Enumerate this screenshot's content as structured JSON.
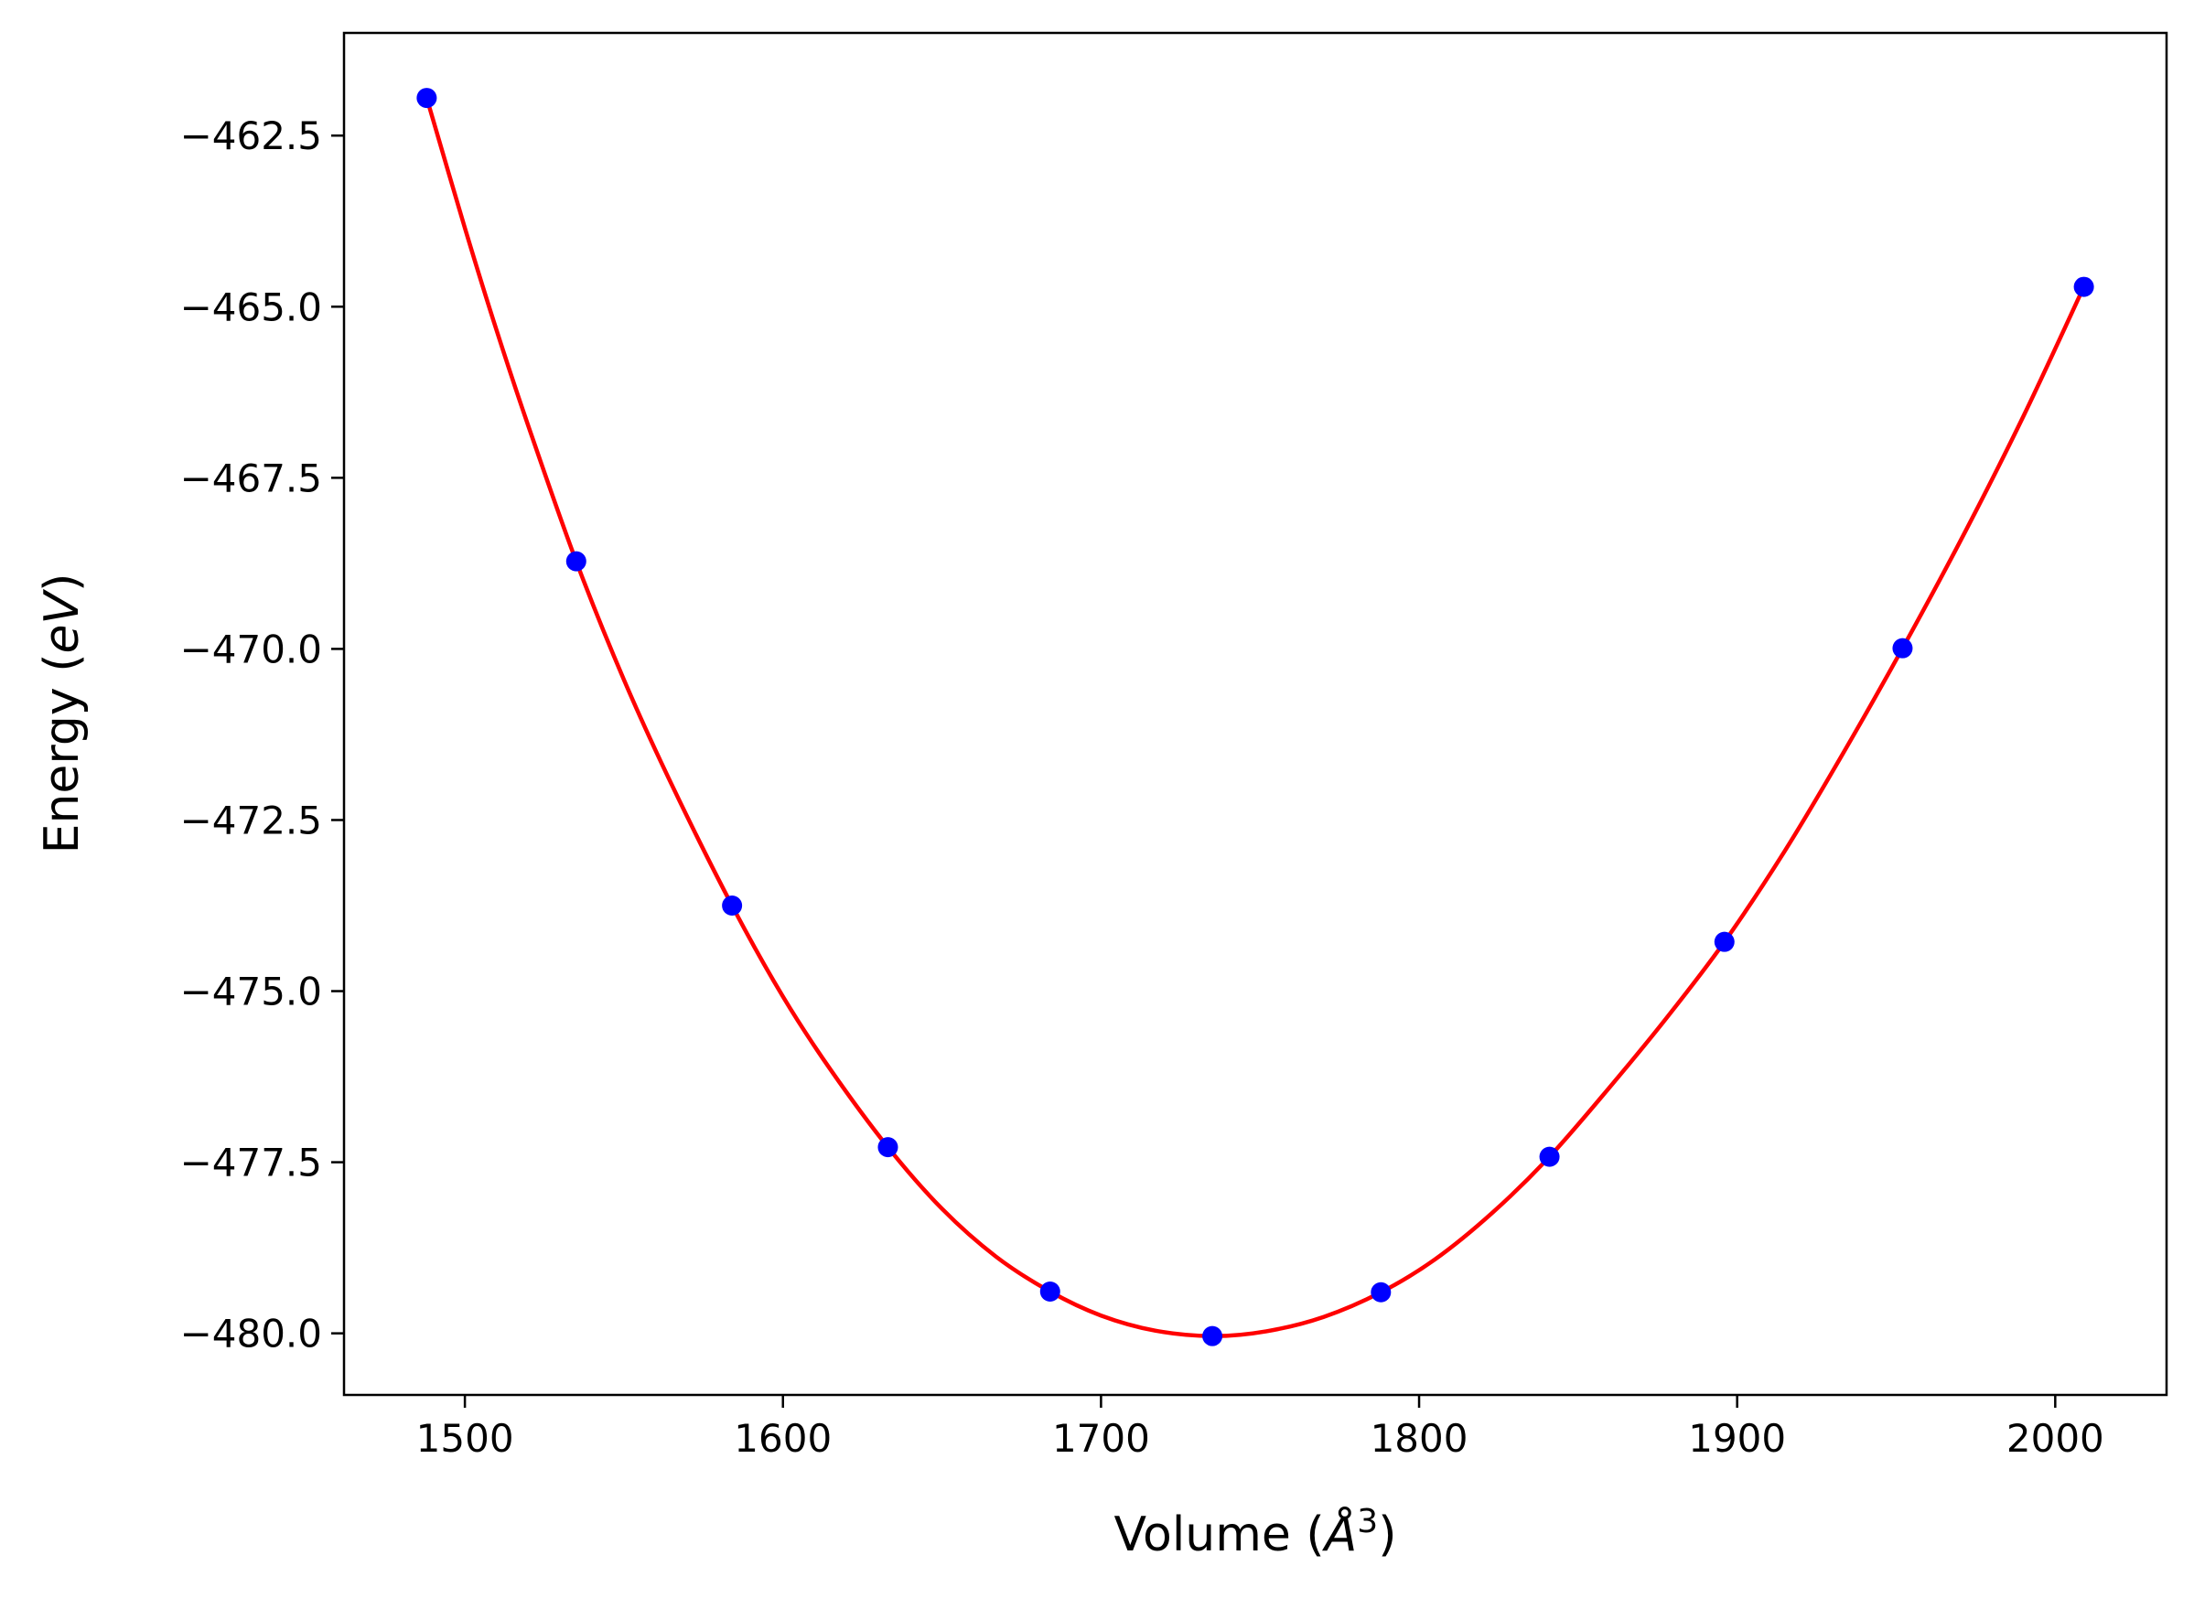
{
  "chart_data": {
    "type": "scatter",
    "title": "",
    "xlabel": "Volume (Å³)",
    "xlabel_parts": {
      "prefix": "Volume (",
      "symbol": "Å",
      "exponent": "3",
      "suffix": ")"
    },
    "ylabel": "Energy (eV)",
    "ylabel_parts": {
      "prefix": "Energy (",
      "unit": "eV",
      "suffix": ")"
    },
    "xlim": [
      1462,
      2035
    ],
    "ylim": [
      -480.9,
      -461.0
    ],
    "x_ticks": [
      1500,
      1600,
      1700,
      1800,
      1900,
      2000
    ],
    "x_tick_labels": [
      "1500",
      "1600",
      "1700",
      "1800",
      "1900",
      "2000"
    ],
    "y_ticks": [
      -462.5,
      -465.0,
      -467.5,
      -470.0,
      -472.5,
      -475.0,
      -477.5,
      -480.0
    ],
    "y_tick_labels": [
      "−462.5",
      "−465.0",
      "−467.5",
      "−470.0",
      "−472.5",
      "−475.0",
      "−477.5",
      "−480.0"
    ],
    "grid": false,
    "legend": "none",
    "series": [
      {
        "type": "scatter",
        "color": "#0000ff",
        "points": [
          {
            "x": 1488,
            "y": -461.95
          },
          {
            "x": 1535,
            "y": -468.72
          },
          {
            "x": 1584,
            "y": -473.75
          },
          {
            "x": 1633,
            "y": -477.28
          },
          {
            "x": 1684,
            "y": -479.39
          },
          {
            "x": 1735,
            "y": -480.04
          },
          {
            "x": 1788,
            "y": -479.4
          },
          {
            "x": 1841,
            "y": -477.42
          },
          {
            "x": 1896,
            "y": -474.28
          },
          {
            "x": 1952,
            "y": -469.99
          },
          {
            "x": 2009,
            "y": -464.71
          }
        ]
      },
      {
        "type": "line",
        "color": "#ff0000",
        "points": [
          {
            "x": 1488,
            "y": -461.95
          },
          {
            "x": 1500,
            "y": -463.85
          },
          {
            "x": 1510,
            "y": -465.35
          },
          {
            "x": 1520,
            "y": -466.75
          },
          {
            "x": 1535,
            "y": -468.72
          },
          {
            "x": 1550,
            "y": -470.45
          },
          {
            "x": 1565,
            "y": -471.98
          },
          {
            "x": 1584,
            "y": -473.75
          },
          {
            "x": 1600,
            "y": -475.08
          },
          {
            "x": 1615,
            "y": -476.15
          },
          {
            "x": 1633,
            "y": -477.28
          },
          {
            "x": 1650,
            "y": -478.18
          },
          {
            "x": 1667,
            "y": -478.88
          },
          {
            "x": 1684,
            "y": -479.39
          },
          {
            "x": 1700,
            "y": -479.74
          },
          {
            "x": 1717,
            "y": -479.96
          },
          {
            "x": 1735,
            "y": -480.04
          },
          {
            "x": 1752,
            "y": -479.97
          },
          {
            "x": 1770,
            "y": -479.76
          },
          {
            "x": 1788,
            "y": -479.4
          },
          {
            "x": 1805,
            "y": -478.92
          },
          {
            "x": 1823,
            "y": -478.24
          },
          {
            "x": 1841,
            "y": -477.42
          },
          {
            "x": 1860,
            "y": -476.4
          },
          {
            "x": 1878,
            "y": -475.38
          },
          {
            "x": 1896,
            "y": -474.28
          },
          {
            "x": 1915,
            "y": -472.95
          },
          {
            "x": 1933,
            "y": -471.55
          },
          {
            "x": 1952,
            "y": -469.99
          },
          {
            "x": 1971,
            "y": -468.35
          },
          {
            "x": 1990,
            "y": -466.6
          },
          {
            "x": 2009,
            "y": -464.71
          }
        ]
      }
    ]
  }
}
